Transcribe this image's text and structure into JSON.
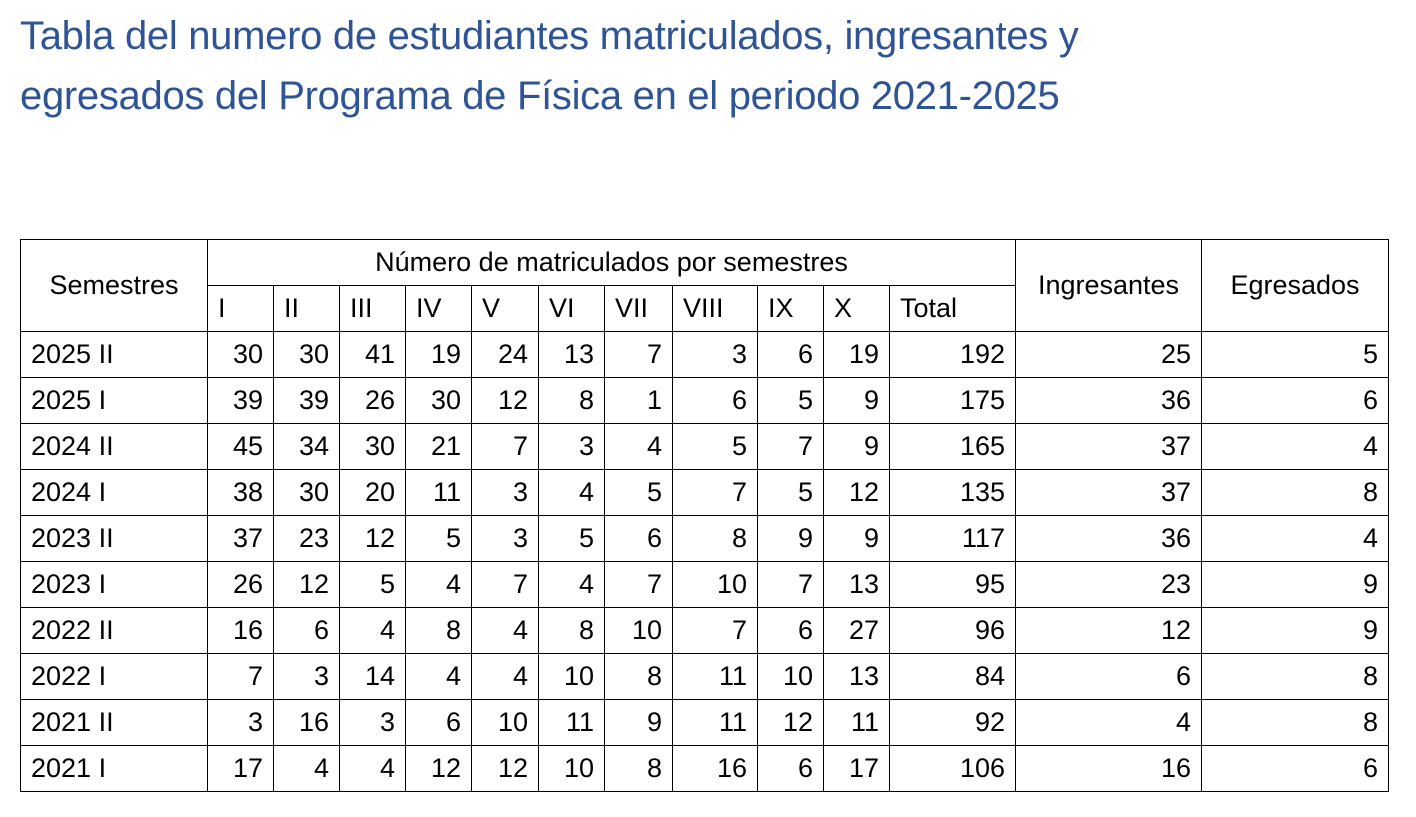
{
  "document": {
    "title_line1": "Tabla del numero de estudiantes matriculados, ingresantes y",
    "title_line2": "egresados del Programa de Física en el periodo 2021-2025",
    "title_color": "#2f5496"
  },
  "table": {
    "headers": {
      "semestres": "Semestres",
      "group": "Número de matriculados por semestres",
      "sub": [
        "I",
        "II",
        "III",
        "IV",
        "V",
        "VI",
        "VII",
        "VIII",
        "IX",
        "X",
        "Total"
      ],
      "ingresantes": "Ingresantes",
      "egresados": "Egresados"
    },
    "rows": [
      {
        "sem": "2025 II",
        "v": [
          "30",
          "30",
          "41",
          "19",
          "24",
          "13",
          "7",
          "3",
          "6",
          "19",
          "192"
        ],
        "ing": "25",
        "egr": "5"
      },
      {
        "sem": "2025 I",
        "v": [
          "39",
          "39",
          "26",
          "30",
          "12",
          "8",
          "1",
          "6",
          "5",
          "9",
          "175"
        ],
        "ing": "36",
        "egr": "6"
      },
      {
        "sem": "2024 II",
        "v": [
          "45",
          "34",
          "30",
          "21",
          "7",
          "3",
          "4",
          "5",
          "7",
          "9",
          "165"
        ],
        "ing": "37",
        "egr": "4"
      },
      {
        "sem": "2024 I",
        "v": [
          "38",
          "30",
          "20",
          "11",
          "3",
          "4",
          "5",
          "7",
          "5",
          "12",
          "135"
        ],
        "ing": "37",
        "egr": "8"
      },
      {
        "sem": "2023 II",
        "v": [
          "37",
          "23",
          "12",
          "5",
          "3",
          "5",
          "6",
          "8",
          "9",
          "9",
          "117"
        ],
        "ing": "36",
        "egr": "4"
      },
      {
        "sem": "2023 I",
        "v": [
          "26",
          "12",
          "5",
          "4",
          "7",
          "4",
          "7",
          "10",
          "7",
          "13",
          "95"
        ],
        "ing": "23",
        "egr": "9"
      },
      {
        "sem": "2022 II",
        "v": [
          "16",
          "6",
          "4",
          "8",
          "4",
          "8",
          "10",
          "7",
          "6",
          "27",
          "96"
        ],
        "ing": "12",
        "egr": "9"
      },
      {
        "sem": "2022 I",
        "v": [
          "7",
          "3",
          "14",
          "4",
          "4",
          "10",
          "8",
          "11",
          "10",
          "13",
          "84"
        ],
        "ing": "6",
        "egr": "8"
      },
      {
        "sem": "2021 II",
        "v": [
          "3",
          "16",
          "3",
          "6",
          "10",
          "11",
          "9",
          "11",
          "12",
          "11",
          "92"
        ],
        "ing": "4",
        "egr": "8"
      },
      {
        "sem": "2021 I",
        "v": [
          "17",
          "4",
          "4",
          "12",
          "12",
          "10",
          "8",
          "16",
          "6",
          "17",
          "106"
        ],
        "ing": "16",
        "egr": "6"
      }
    ]
  }
}
